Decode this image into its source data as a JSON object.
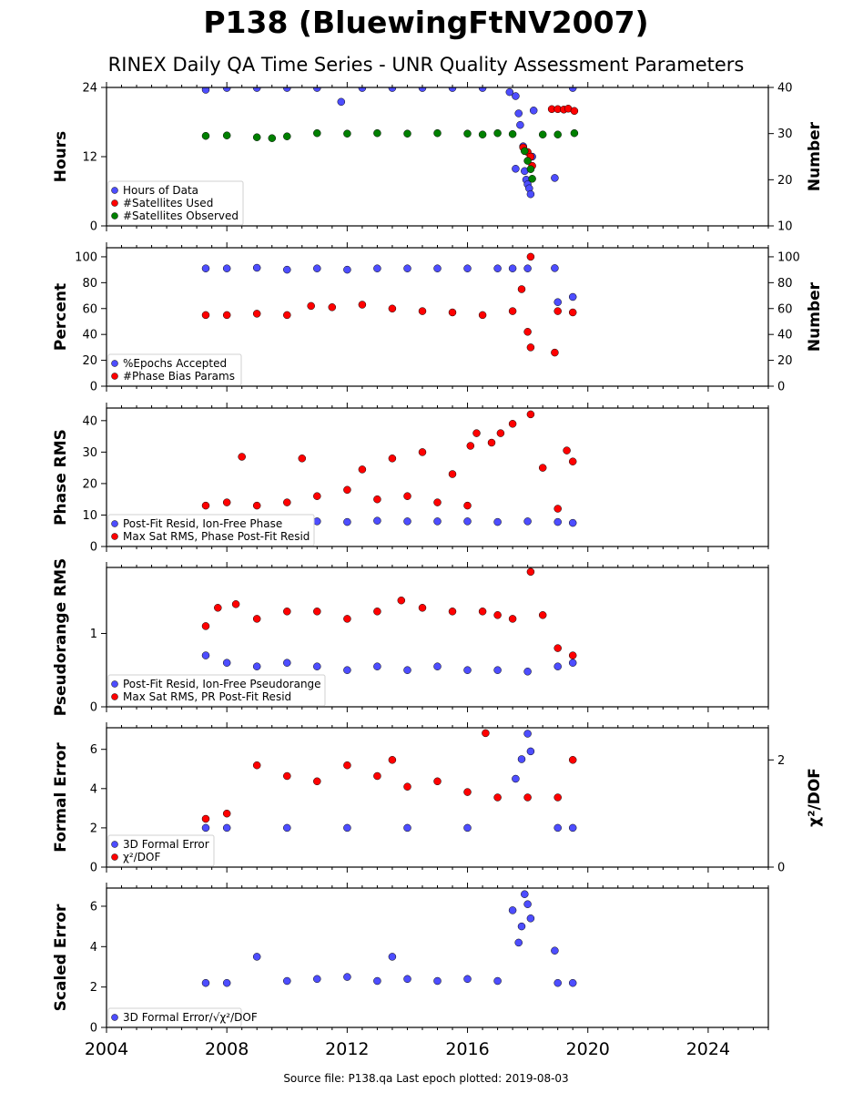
{
  "title": "P138 (BluewingFtNV2007)",
  "subtitle": "RINEX Daily QA Time Series - UNR Quality Assessment Parameters",
  "footer": "Source file: P138.qa Last epoch plotted: 2019-08-03",
  "colors": {
    "blue": "#4d4dff",
    "red": "#ff0000",
    "green": "#008000",
    "edge": "#000000"
  },
  "chart_data": [
    {
      "type": "scatter",
      "ylabel": "Hours",
      "ylabel_right": "Number",
      "ylim": [
        0,
        24
      ],
      "ylim_right": [
        10,
        40
      ],
      "yticks": [
        "0",
        "12",
        "24"
      ],
      "yticks_right": [
        "10",
        "20",
        "30",
        "40"
      ],
      "legend_position": "lower-left",
      "series": [
        {
          "name": "Hours of Data",
          "axis": "left",
          "color": "blue",
          "points": [
            [
              2007.3,
              23.6
            ],
            [
              2008,
              23.9
            ],
            [
              2009,
              23.9
            ],
            [
              2010,
              23.9
            ],
            [
              2011,
              23.9
            ],
            [
              2011.8,
              21.5
            ],
            [
              2012.5,
              23.9
            ],
            [
              2013.5,
              23.9
            ],
            [
              2014.5,
              23.9
            ],
            [
              2015.5,
              23.9
            ],
            [
              2016.5,
              23.9
            ],
            [
              2017.4,
              23.2
            ],
            [
              2017.6,
              22.5
            ],
            [
              2017.7,
              19.5
            ],
            [
              2017.75,
              17.5
            ],
            [
              2017.85,
              13.8
            ],
            [
              2017.6,
              9.9
            ],
            [
              2017.9,
              9.5
            ],
            [
              2017.95,
              8
            ],
            [
              2018.0,
              7.2
            ],
            [
              2018.05,
              6.5
            ],
            [
              2018.1,
              5.5
            ],
            [
              2018.15,
              12
            ],
            [
              2018.2,
              20
            ],
            [
              2018.9,
              8.3
            ],
            [
              2019.5,
              23.9
            ]
          ]
        },
        {
          "name": "#Satellites Used",
          "axis": "right",
          "color": "red",
          "points": [
            [
              2017.85,
              27
            ],
            [
              2018,
              26
            ],
            [
              2018.1,
              25
            ],
            [
              2018.15,
              23
            ],
            [
              2018.8,
              35.3
            ],
            [
              2019.0,
              35.3
            ],
            [
              2019.2,
              35.2
            ],
            [
              2019.35,
              35.4
            ],
            [
              2019.55,
              34.9
            ]
          ]
        },
        {
          "name": "#Satellites Observed",
          "axis": "right",
          "color": "green",
          "points": [
            [
              2007.3,
              29.5
            ],
            [
              2008,
              29.6
            ],
            [
              2009,
              29.2
            ],
            [
              2009.5,
              29.0
            ],
            [
              2010,
              29.4
            ],
            [
              2011,
              30.1
            ],
            [
              2012,
              30.0
            ],
            [
              2013,
              30.1
            ],
            [
              2014,
              30.0
            ],
            [
              2015,
              30.1
            ],
            [
              2016,
              30.0
            ],
            [
              2016.5,
              29.8
            ],
            [
              2017,
              30.1
            ],
            [
              2017.5,
              29.9
            ],
            [
              2017.9,
              26.2
            ],
            [
              2018.0,
              24.1
            ],
            [
              2018.1,
              22.3
            ],
            [
              2018.15,
              20.2
            ],
            [
              2018.5,
              29.8
            ],
            [
              2019.0,
              29.8
            ],
            [
              2019.55,
              30.1
            ]
          ]
        }
      ]
    },
    {
      "type": "scatter",
      "ylabel": "Percent",
      "ylabel_right": "Number",
      "ylim": [
        0,
        107
      ],
      "ylim_right": [
        0,
        107
      ],
      "yticks": [
        "0",
        "20",
        "40",
        "60",
        "80",
        "100"
      ],
      "yticks_right": [
        "0",
        "20",
        "40",
        "60",
        "80",
        "100"
      ],
      "legend_position": "lower-left",
      "series": [
        {
          "name": "%Epochs Accepted",
          "axis": "left",
          "color": "blue",
          "points": [
            [
              2007.3,
              91
            ],
            [
              2008,
              91
            ],
            [
              2009,
              91.5
            ],
            [
              2010,
              90
            ],
            [
              2011,
              91
            ],
            [
              2012,
              90
            ],
            [
              2013,
              91
            ],
            [
              2014,
              91
            ],
            [
              2015,
              91
            ],
            [
              2016,
              91
            ],
            [
              2017,
              91
            ],
            [
              2017.5,
              91
            ],
            [
              2018,
              91
            ],
            [
              2018.9,
              91.2
            ],
            [
              2019,
              65
            ],
            [
              2019.5,
              69
            ]
          ]
        },
        {
          "name": "#Phase Bias Params",
          "axis": "right",
          "color": "red",
          "points": [
            [
              2007.3,
              55
            ],
            [
              2008,
              55
            ],
            [
              2009,
              56
            ],
            [
              2010,
              55
            ],
            [
              2010.8,
              62
            ],
            [
              2011.5,
              61
            ],
            [
              2012.5,
              63
            ],
            [
              2013.5,
              60
            ],
            [
              2014.5,
              58
            ],
            [
              2015.5,
              57
            ],
            [
              2016.5,
              55
            ],
            [
              2017.5,
              58
            ],
            [
              2017.8,
              75
            ],
            [
              2018.0,
              42
            ],
            [
              2018.1,
              30
            ],
            [
              2018.1,
              100
            ],
            [
              2018.9,
              26
            ],
            [
              2019.0,
              58
            ],
            [
              2019.5,
              57
            ]
          ]
        }
      ]
    },
    {
      "type": "scatter",
      "ylabel": "Phase RMS",
      "ylim": [
        0,
        44
      ],
      "yticks": [
        "0",
        "10",
        "20",
        "30",
        "40"
      ],
      "legend_position": "lower-left",
      "series": [
        {
          "name": "Post-Fit Resid, Ion-Free Phase",
          "color": "blue",
          "points": [
            [
              2007.3,
              9
            ],
            [
              2008,
              8.5
            ],
            [
              2009,
              8
            ],
            [
              2010,
              8
            ],
            [
              2011,
              8
            ],
            [
              2012,
              7.8
            ],
            [
              2013,
              8.2
            ],
            [
              2014,
              8
            ],
            [
              2015,
              8
            ],
            [
              2016,
              8
            ],
            [
              2017,
              7.8
            ],
            [
              2018,
              8
            ],
            [
              2019,
              7.8
            ],
            [
              2019.5,
              7.5
            ]
          ]
        },
        {
          "name": "Max Sat RMS, Phase Post-Fit Resid",
          "color": "red",
          "points": [
            [
              2007.3,
              13
            ],
            [
              2008,
              14
            ],
            [
              2008.5,
              28.5
            ],
            [
              2009,
              13
            ],
            [
              2010,
              14
            ],
            [
              2010.5,
              28
            ],
            [
              2011,
              16
            ],
            [
              2012,
              18
            ],
            [
              2012.5,
              24.5
            ],
            [
              2013,
              15
            ],
            [
              2013.5,
              28
            ],
            [
              2014,
              16
            ],
            [
              2014.5,
              30
            ],
            [
              2015,
              14
            ],
            [
              2015.5,
              23
            ],
            [
              2016,
              13
            ],
            [
              2016.1,
              32
            ],
            [
              2016.3,
              36
            ],
            [
              2016.8,
              33
            ],
            [
              2017.1,
              36
            ],
            [
              2017.5,
              39
            ],
            [
              2018.1,
              42
            ],
            [
              2018.5,
              25
            ],
            [
              2019,
              12
            ],
            [
              2019.3,
              30.5
            ],
            [
              2019.5,
              27
            ]
          ]
        }
      ]
    },
    {
      "type": "scatter",
      "ylabel": "Pseudorange RMS",
      "ylim": [
        0,
        1.9
      ],
      "yticks": [
        "0",
        "1"
      ],
      "legend_position": "lower-left",
      "series": [
        {
          "name": "Post-Fit Resid, Ion-Free Pseudorange",
          "color": "blue",
          "points": [
            [
              2007.3,
              0.7
            ],
            [
              2008,
              0.6
            ],
            [
              2009,
              0.55
            ],
            [
              2010,
              0.6
            ],
            [
              2011,
              0.55
            ],
            [
              2012,
              0.5
            ],
            [
              2013,
              0.55
            ],
            [
              2014,
              0.5
            ],
            [
              2015,
              0.55
            ],
            [
              2016,
              0.5
            ],
            [
              2017,
              0.5
            ],
            [
              2018,
              0.48
            ],
            [
              2019,
              0.55
            ],
            [
              2019.5,
              0.6
            ]
          ]
        },
        {
          "name": "Max Sat RMS, PR Post-Fit Resid",
          "color": "red",
          "points": [
            [
              2007.3,
              1.1
            ],
            [
              2007.7,
              1.35
            ],
            [
              2008.3,
              1.4
            ],
            [
              2009,
              1.2
            ],
            [
              2010,
              1.3
            ],
            [
              2011,
              1.3
            ],
            [
              2012,
              1.2
            ],
            [
              2013,
              1.3
            ],
            [
              2013.8,
              1.45
            ],
            [
              2014.5,
              1.35
            ],
            [
              2015.5,
              1.3
            ],
            [
              2016.5,
              1.3
            ],
            [
              2017,
              1.25
            ],
            [
              2017.5,
              1.2
            ],
            [
              2018.1,
              1.84
            ],
            [
              2018.5,
              1.25
            ],
            [
              2019,
              0.8
            ],
            [
              2019.5,
              0.7
            ]
          ]
        }
      ]
    },
    {
      "type": "scatter",
      "ylabel": "Formal Error",
      "ylabel_right": "χ²/DOF",
      "ylim": [
        0,
        7.1
      ],
      "ylim_right": [
        0,
        2.6
      ],
      "yticks": [
        "0",
        "2",
        "4",
        "6"
      ],
      "yticks_right": [
        "0",
        "2"
      ],
      "legend_position": "lower-left",
      "series": [
        {
          "name": "3D Formal Error",
          "axis": "left",
          "color": "blue",
          "points": [
            [
              2007.3,
              2
            ],
            [
              2008,
              2
            ],
            [
              2010,
              2
            ],
            [
              2012,
              2
            ],
            [
              2014,
              2
            ],
            [
              2016,
              2
            ],
            [
              2017.6,
              4.5
            ],
            [
              2017.8,
              5.5
            ],
            [
              2018,
              6.8
            ],
            [
              2018.1,
              5.9
            ],
            [
              2019,
              2
            ],
            [
              2019.5,
              2
            ]
          ]
        },
        {
          "name": "χ²/DOF",
          "axis": "right",
          "color": "red",
          "points": [
            [
              2007.3,
              0.9
            ],
            [
              2008,
              1.0
            ],
            [
              2009,
              1.9
            ],
            [
              2010,
              1.7
            ],
            [
              2011,
              1.6
            ],
            [
              2012,
              1.9
            ],
            [
              2013,
              1.7
            ],
            [
              2013.5,
              2.0
            ],
            [
              2014,
              1.5
            ],
            [
              2015,
              1.6
            ],
            [
              2016,
              1.4
            ],
            [
              2016.6,
              2.5
            ],
            [
              2017,
              1.3
            ],
            [
              2018,
              1.3
            ],
            [
              2019,
              1.3
            ],
            [
              2019.5,
              2.0
            ]
          ]
        }
      ]
    },
    {
      "type": "scatter",
      "ylabel": "Scaled Error",
      "ylim": [
        0,
        6.9
      ],
      "yticks": [
        "0",
        "2",
        "4",
        "6"
      ],
      "legend_position": "lower-left",
      "series": [
        {
          "name": "3D Formal Error/√χ²/DOF",
          "color": "blue",
          "points": [
            [
              2007.3,
              2.2
            ],
            [
              2008,
              2.2
            ],
            [
              2009,
              3.5
            ],
            [
              2010,
              2.3
            ],
            [
              2011,
              2.4
            ],
            [
              2012,
              2.5
            ],
            [
              2013,
              2.3
            ],
            [
              2013.5,
              3.5
            ],
            [
              2014,
              2.4
            ],
            [
              2015,
              2.3
            ],
            [
              2016,
              2.4
            ],
            [
              2017,
              2.3
            ],
            [
              2017.5,
              5.8
            ],
            [
              2017.7,
              4.2
            ],
            [
              2017.8,
              5
            ],
            [
              2017.9,
              6.6
            ],
            [
              2018,
              6.1
            ],
            [
              2018.1,
              5.4
            ],
            [
              2018.9,
              3.8
            ],
            [
              2019,
              2.2
            ],
            [
              2019.5,
              2.2
            ]
          ]
        }
      ]
    }
  ],
  "x_axis": {
    "xlim": [
      2004,
      2026
    ],
    "ticks": [
      "2004",
      "2008",
      "2012",
      "2016",
      "2020",
      "2024"
    ]
  }
}
